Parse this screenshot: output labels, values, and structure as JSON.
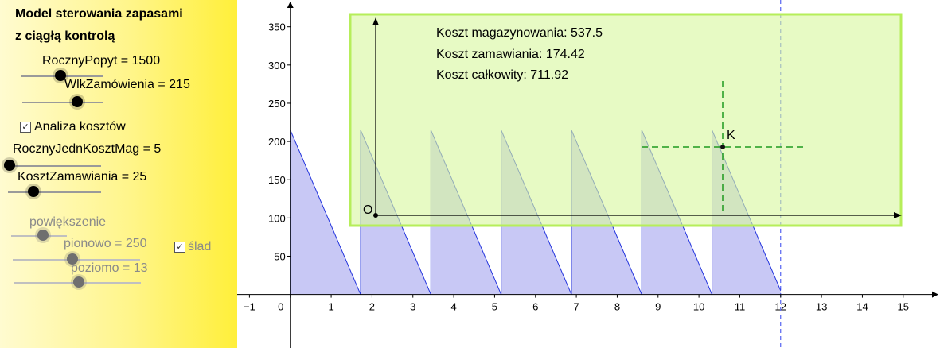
{
  "sidebar": {
    "title_line1": "Model sterowania zapasami",
    "title_line2": "z ciągłą kontrolą",
    "slider_annual_demand": {
      "label": "RocznyPopyt = 1500"
    },
    "slider_order_size": {
      "label": "WlkZamówienia = 215"
    },
    "cost_analysis": {
      "label": "Analiza kosztów",
      "checked": true
    },
    "slider_holding_cost": {
      "label": "RocznyJednKosztMag = 5"
    },
    "slider_order_cost": {
      "label": "KosztZamawiania = 25"
    },
    "zoom": {
      "label": "powiększenie"
    },
    "slider_vertical": {
      "label": "pionowo = 250"
    },
    "trace": {
      "label": "ślad",
      "checked": true
    },
    "slider_horizontal": {
      "label": "poziomo = 13"
    }
  },
  "info_panel": {
    "holding_cost": "Koszt magazynowania: 537.5",
    "ordering_cost": "Koszt zamawiania: 174.42",
    "total_cost": "Koszt całkowity: 711.92"
  },
  "points": {
    "origin_label": "O",
    "k_label": "K"
  },
  "chart_data": {
    "type": "area",
    "x_ticks": [
      "−1",
      "0",
      "1",
      "2",
      "3",
      "4",
      "5",
      "6",
      "7",
      "8",
      "9",
      "10",
      "11",
      "12",
      "13",
      "14",
      "15"
    ],
    "y_ticks": [
      "50",
      "100",
      "150",
      "200",
      "250",
      "300",
      "350"
    ],
    "xlim": [
      -1.3,
      15.9
    ],
    "ylim": [
      -70,
      385
    ],
    "order_quantity": 215,
    "cycle_length": 1.72,
    "horizon": 12,
    "grid": false,
    "colors": {
      "fill": "#c8c8f5",
      "stroke": "#2233dd",
      "panel": "#d8f7a0",
      "panel_border": "#b6ee5a",
      "crosshair": "#1e9a1e"
    }
  }
}
